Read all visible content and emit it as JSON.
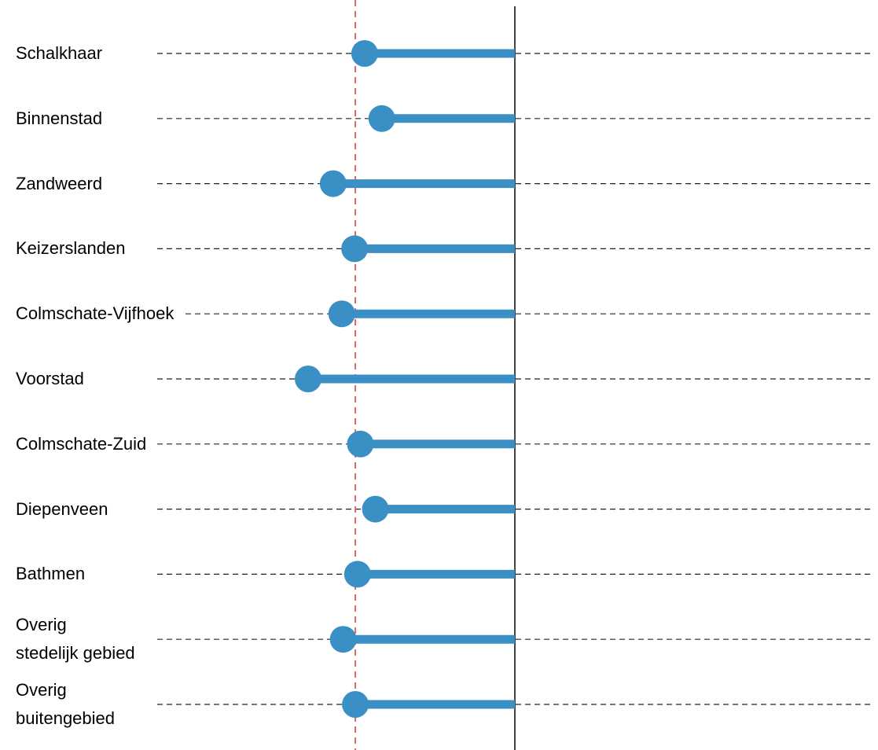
{
  "chart_data": {
    "type": "lollipop",
    "categories": [
      "Schalkhaar",
      "Binnenstad",
      "Zandweerd",
      "Keizerslanden",
      "Colmschate-Vijfhoek",
      "Voorstad",
      "Colmschate-Zuid",
      "Diepenveen",
      "Bathmen",
      "Overig\nstedelijk gebied",
      "Overig\nbuitengebied"
    ],
    "values": [
      -21,
      -18.6,
      -25.4,
      -22.4,
      -24.2,
      -28.9,
      -21.6,
      -19.5,
      -22,
      -24,
      -22.3
    ],
    "color": "#3a8fc4",
    "baseline": 0,
    "reference": -22.3,
    "reference_color": "#e06666",
    "xlim": [
      -50,
      50
    ],
    "grid": true
  }
}
